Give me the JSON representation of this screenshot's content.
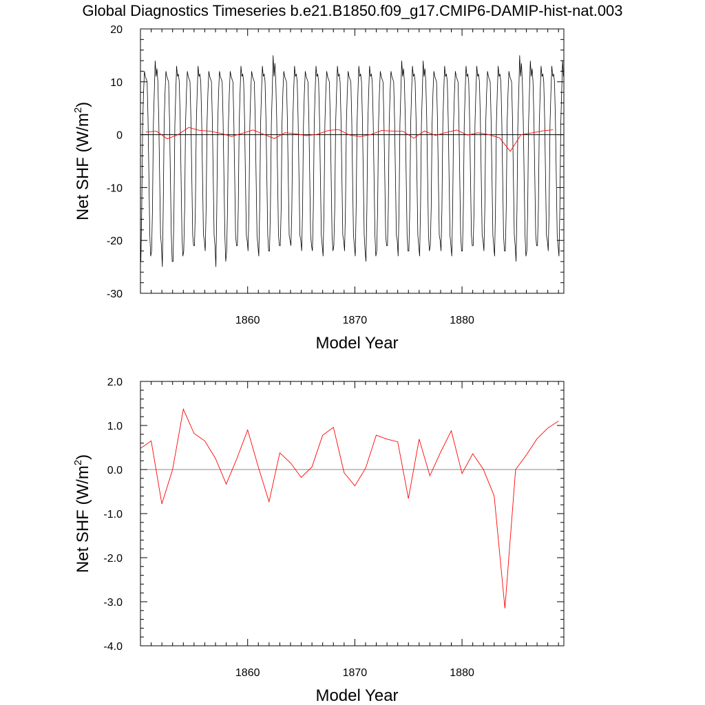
{
  "title": "Global Diagnostics Timeseries b.e21.B1850.f09_g17.CMIP6-DAMIP-hist-nat.003",
  "colors": {
    "monthly": "#000000",
    "annual": "#ff0000",
    "zero_line": "#000000",
    "zero_line_bottom": "#888888"
  },
  "chart_data": [
    {
      "type": "line",
      "xlabel": "Model Year",
      "ylabel_main": "Net SHF (W/m",
      "ylabel_sup": "2",
      "ylabel_close": ")",
      "xlim": [
        1850,
        1889.5
      ],
      "ylim": [
        -30,
        20
      ],
      "xticks": [
        1860,
        1870,
        1880
      ],
      "xtick_labels": [
        "1860",
        "1870",
        "1880"
      ],
      "yticks": [
        -30,
        -20,
        -10,
        0,
        10,
        20
      ],
      "ytick_labels": [
        "-30",
        "-20",
        "-10",
        "0",
        "10",
        "20"
      ],
      "reference_line_y": 0,
      "monthly_pattern": {
        "months": [
          1,
          2,
          3,
          4,
          5,
          6,
          7,
          8,
          9,
          10,
          11,
          12
        ],
        "values": [
          -22,
          -14,
          2,
          8,
          12,
          11,
          12,
          10,
          3,
          -8,
          -19,
          -22
        ]
      },
      "annual_min_values": [
        -24,
        -22,
        -25,
        -24,
        -22,
        -21,
        -22,
        -25,
        -22,
        -21,
        -22,
        -23,
        -22,
        -21,
        -21,
        -22,
        -22,
        -23,
        -21,
        -22,
        -23,
        -24,
        -22,
        -21,
        -23,
        -22,
        -23,
        -21,
        -22,
        -23,
        -22,
        -21,
        -22,
        -23,
        -22,
        -24,
        -22,
        -21,
        -22,
        -23
      ],
      "annual_max_values": [
        12,
        14,
        12,
        13,
        12,
        13,
        12,
        12,
        12,
        13,
        12,
        13,
        15,
        12,
        13,
        12,
        13,
        12,
        13,
        12,
        13,
        13,
        12,
        12,
        14,
        13,
        14,
        12,
        13,
        12,
        13,
        13,
        12,
        13,
        12,
        15,
        14,
        13,
        13,
        14
      ],
      "series": [
        {
          "style": "monthly",
          "color": "#000000",
          "description_values": "repeating seasonal cycle"
        },
        {
          "style": "annual",
          "color": "#ff0000",
          "x": [
            1850.5,
            1851.5,
            1852.5,
            1853.5,
            1854.5,
            1855.5,
            1856.5,
            1857.5,
            1858.5,
            1859.5,
            1860.5,
            1861.5,
            1862.5,
            1863.5,
            1864.5,
            1865.5,
            1866.5,
            1867.5,
            1868.5,
            1869.5,
            1870.5,
            1871.5,
            1872.5,
            1873.5,
            1874.5,
            1875.5,
            1876.5,
            1877.5,
            1878.5,
            1879.5,
            1880.5,
            1881.5,
            1882.5,
            1883.5,
            1884.5,
            1885.5,
            1886.5,
            1887.5,
            1888.5
          ],
          "values": [
            0.5,
            0.65,
            -0.78,
            0.0,
            1.37,
            0.82,
            0.65,
            0.25,
            -0.33,
            0.25,
            0.9,
            0.05,
            -0.73,
            0.38,
            0.15,
            -0.18,
            0.06,
            0.78,
            0.96,
            -0.07,
            -0.37,
            0.03,
            0.78,
            0.69,
            0.63,
            -0.66,
            0.69,
            -0.14,
            0.39,
            0.88,
            -0.09,
            0.36,
            0.0,
            -0.6,
            -3.15,
            0.0,
            0.33,
            0.7,
            0.94
          ]
        }
      ]
    },
    {
      "type": "line",
      "xlabel": "Model Year",
      "ylabel_main": "Net SHF (W/m",
      "ylabel_sup": "2",
      "ylabel_close": ")",
      "xlim": [
        1850,
        1889.5
      ],
      "ylim": [
        -4.0,
        2.0
      ],
      "xticks": [
        1860,
        1870,
        1880
      ],
      "xtick_labels": [
        "1860",
        "1870",
        "1880"
      ],
      "yticks": [
        -4.0,
        -3.0,
        -2.0,
        -1.0,
        0.0,
        1.0,
        2.0
      ],
      "ytick_labels": [
        "-4.0",
        "-3.0",
        "-2.0",
        "-1.0",
        "0.0",
        "1.0",
        "2.0"
      ],
      "reference_line_y": 0,
      "series": [
        {
          "style": "annual",
          "color": "#ff0000",
          "x": [
            1850.0,
            1851.0,
            1852.0,
            1853.0,
            1854.0,
            1855.0,
            1856.0,
            1857.0,
            1858.0,
            1859.0,
            1860.0,
            1861.0,
            1862.0,
            1863.0,
            1864.0,
            1865.0,
            1866.0,
            1867.0,
            1868.0,
            1869.0,
            1870.0,
            1871.0,
            1872.0,
            1873.0,
            1874.0,
            1875.0,
            1876.0,
            1877.0,
            1878.0,
            1879.0,
            1880.0,
            1881.0,
            1882.0,
            1883.0,
            1884.0,
            1885.0,
            1886.0,
            1887.0,
            1888.0,
            1889.0
          ],
          "values": [
            0.48,
            0.65,
            -0.78,
            0.0,
            1.37,
            0.82,
            0.65,
            0.25,
            -0.33,
            0.25,
            0.9,
            0.05,
            -0.73,
            0.38,
            0.15,
            -0.18,
            0.06,
            0.78,
            0.96,
            -0.07,
            -0.37,
            0.03,
            0.78,
            0.69,
            0.63,
            -0.66,
            0.69,
            -0.14,
            0.39,
            0.88,
            -0.09,
            0.36,
            0.0,
            -0.6,
            -3.15,
            0.0,
            0.33,
            0.7,
            0.94,
            1.1
          ]
        }
      ]
    }
  ]
}
